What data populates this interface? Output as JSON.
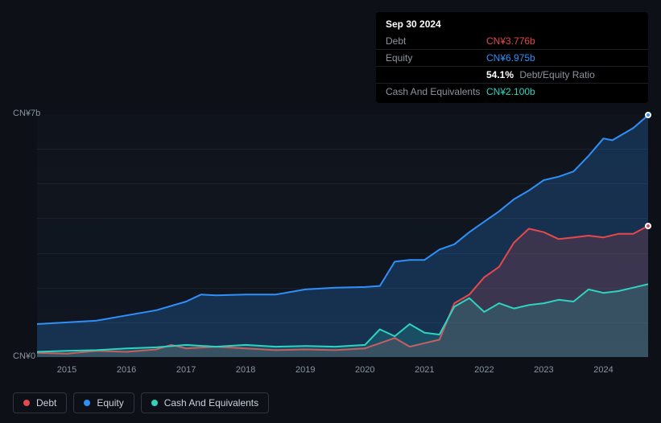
{
  "tooltip": {
    "date": "Sep 30 2024",
    "rows": {
      "debt": {
        "label": "Debt",
        "value": "CN¥3.776b"
      },
      "equity": {
        "label": "Equity",
        "value": "CN¥6.975b"
      },
      "ratio": {
        "value": "54.1%",
        "label": "Debt/Equity Ratio"
      },
      "cash": {
        "label": "Cash And Equivalents",
        "value": "CN¥2.100b"
      }
    }
  },
  "chart": {
    "type": "area",
    "background": "#0d1117",
    "plot_bg_top": "#0f141c",
    "plot_bg_bottom": "#111722",
    "grid_color": "#1a202c",
    "y_axis": {
      "min": 0,
      "max": 7,
      "labels": [
        {
          "v": 0,
          "text": "CN¥0"
        },
        {
          "v": 7,
          "text": "CN¥7b"
        }
      ],
      "font_size": 11,
      "color": "#8b949e",
      "gridlines_at": [
        1,
        2,
        3,
        4,
        5,
        6
      ]
    },
    "x_axis": {
      "min": 2014.5,
      "max": 2024.75,
      "ticks": [
        2015,
        2016,
        2017,
        2018,
        2019,
        2020,
        2021,
        2022,
        2023,
        2024
      ],
      "font_size": 11,
      "color": "#8b949e"
    },
    "series": {
      "equity": {
        "label": "Equity",
        "stroke": "#2e90fa",
        "fill": "#2e90fa",
        "fill_opacity": 0.22,
        "stroke_width": 2,
        "data": [
          [
            2014.5,
            0.95
          ],
          [
            2015.0,
            1.0
          ],
          [
            2015.5,
            1.05
          ],
          [
            2016.0,
            1.2
          ],
          [
            2016.5,
            1.35
          ],
          [
            2017.0,
            1.6
          ],
          [
            2017.25,
            1.8
          ],
          [
            2017.5,
            1.78
          ],
          [
            2018.0,
            1.8
          ],
          [
            2018.5,
            1.8
          ],
          [
            2019.0,
            1.95
          ],
          [
            2019.5,
            2.0
          ],
          [
            2020.0,
            2.02
          ],
          [
            2020.25,
            2.05
          ],
          [
            2020.5,
            2.75
          ],
          [
            2020.75,
            2.8
          ],
          [
            2021.0,
            2.8
          ],
          [
            2021.25,
            3.1
          ],
          [
            2021.5,
            3.25
          ],
          [
            2021.75,
            3.6
          ],
          [
            2022.0,
            3.9
          ],
          [
            2022.25,
            4.2
          ],
          [
            2022.5,
            4.55
          ],
          [
            2022.75,
            4.8
          ],
          [
            2023.0,
            5.1
          ],
          [
            2023.25,
            5.2
          ],
          [
            2023.5,
            5.35
          ],
          [
            2023.75,
            5.8
          ],
          [
            2024.0,
            6.3
          ],
          [
            2024.15,
            6.25
          ],
          [
            2024.3,
            6.4
          ],
          [
            2024.5,
            6.6
          ],
          [
            2024.75,
            6.97
          ]
        ]
      },
      "debt": {
        "label": "Debt",
        "stroke": "#e5484d",
        "fill": "#e5484d",
        "fill_opacity": 0.18,
        "stroke_width": 2,
        "data": [
          [
            2014.5,
            0.12
          ],
          [
            2015.0,
            0.1
          ],
          [
            2015.5,
            0.18
          ],
          [
            2016.0,
            0.15
          ],
          [
            2016.5,
            0.22
          ],
          [
            2016.75,
            0.35
          ],
          [
            2017.0,
            0.25
          ],
          [
            2017.5,
            0.3
          ],
          [
            2018.0,
            0.25
          ],
          [
            2018.5,
            0.2
          ],
          [
            2019.0,
            0.22
          ],
          [
            2019.5,
            0.2
          ],
          [
            2020.0,
            0.25
          ],
          [
            2020.5,
            0.55
          ],
          [
            2020.75,
            0.3
          ],
          [
            2021.0,
            0.4
          ],
          [
            2021.25,
            0.5
          ],
          [
            2021.5,
            1.55
          ],
          [
            2021.75,
            1.8
          ],
          [
            2022.0,
            2.3
          ],
          [
            2022.25,
            2.6
          ],
          [
            2022.5,
            3.3
          ],
          [
            2022.75,
            3.7
          ],
          [
            2023.0,
            3.6
          ],
          [
            2023.25,
            3.4
          ],
          [
            2023.5,
            3.45
          ],
          [
            2023.75,
            3.5
          ],
          [
            2024.0,
            3.45
          ],
          [
            2024.25,
            3.55
          ],
          [
            2024.5,
            3.55
          ],
          [
            2024.75,
            3.78
          ]
        ]
      },
      "cash": {
        "label": "Cash And Equivalents",
        "stroke": "#2dd4bf",
        "fill": "#2dd4bf",
        "fill_opacity": 0.18,
        "stroke_width": 2,
        "data": [
          [
            2014.5,
            0.15
          ],
          [
            2015.0,
            0.18
          ],
          [
            2015.5,
            0.2
          ],
          [
            2016.0,
            0.25
          ],
          [
            2016.5,
            0.28
          ],
          [
            2017.0,
            0.35
          ],
          [
            2017.5,
            0.3
          ],
          [
            2018.0,
            0.35
          ],
          [
            2018.5,
            0.3
          ],
          [
            2019.0,
            0.32
          ],
          [
            2019.5,
            0.3
          ],
          [
            2020.0,
            0.35
          ],
          [
            2020.25,
            0.8
          ],
          [
            2020.5,
            0.6
          ],
          [
            2020.75,
            0.95
          ],
          [
            2021.0,
            0.7
          ],
          [
            2021.25,
            0.65
          ],
          [
            2021.5,
            1.45
          ],
          [
            2021.75,
            1.7
          ],
          [
            2022.0,
            1.3
          ],
          [
            2022.25,
            1.55
          ],
          [
            2022.5,
            1.4
          ],
          [
            2022.75,
            1.5
          ],
          [
            2023.0,
            1.55
          ],
          [
            2023.25,
            1.65
          ],
          [
            2023.5,
            1.6
          ],
          [
            2023.75,
            1.95
          ],
          [
            2024.0,
            1.85
          ],
          [
            2024.25,
            1.9
          ],
          [
            2024.5,
            2.0
          ],
          [
            2024.75,
            2.1
          ]
        ]
      }
    },
    "end_markers": [
      {
        "series": "equity",
        "color": "#2e90fa"
      },
      {
        "series": "debt",
        "color": "#e5484d"
      }
    ]
  },
  "legend": {
    "items": [
      {
        "key": "debt",
        "label": "Debt",
        "color": "#e5484d"
      },
      {
        "key": "equity",
        "label": "Equity",
        "color": "#2e90fa"
      },
      {
        "key": "cash",
        "label": "Cash And Equivalents",
        "color": "#2dd4bf"
      }
    ],
    "border_color": "#30363d",
    "font_size": 12
  }
}
